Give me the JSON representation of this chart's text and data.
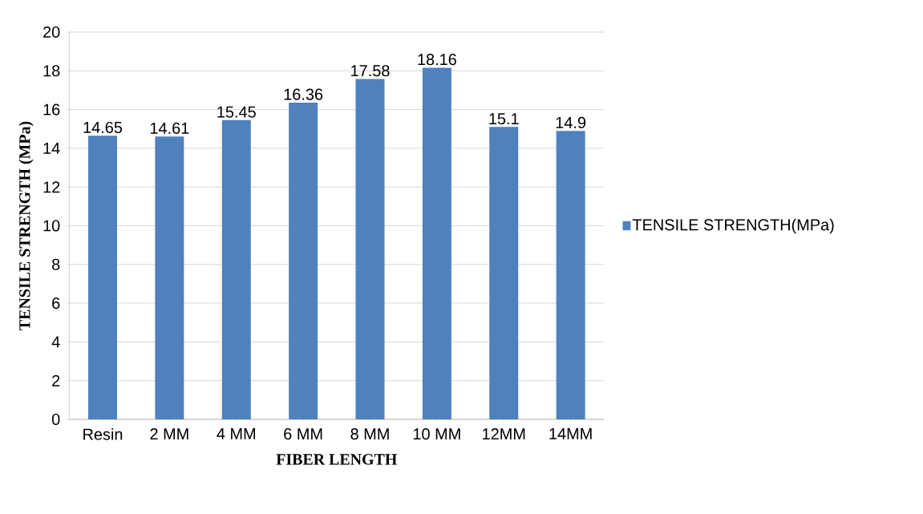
{
  "chart_data": {
    "type": "bar",
    "categories": [
      "Resin",
      "2 MM",
      "4 MM",
      "6 MM",
      "8 MM",
      "10 MM",
      "12MM",
      "14MM"
    ],
    "series": [
      {
        "name": "TENSILE STRENGTH(MPa)",
        "color": "#4f81bd",
        "values": [
          14.65,
          14.61,
          15.45,
          16.36,
          17.58,
          18.16,
          15.1,
          14.9
        ]
      }
    ],
    "xlabel": "FIBER LENGTH",
    "ylabel": "TENSILE  STRENGTH (MPa)",
    "ylim": [
      0,
      20
    ],
    "yticks": [
      0,
      2,
      4,
      6,
      8,
      10,
      12,
      14,
      16,
      18,
      20
    ],
    "grid": "y",
    "legend": "right",
    "data_labels": true
  }
}
